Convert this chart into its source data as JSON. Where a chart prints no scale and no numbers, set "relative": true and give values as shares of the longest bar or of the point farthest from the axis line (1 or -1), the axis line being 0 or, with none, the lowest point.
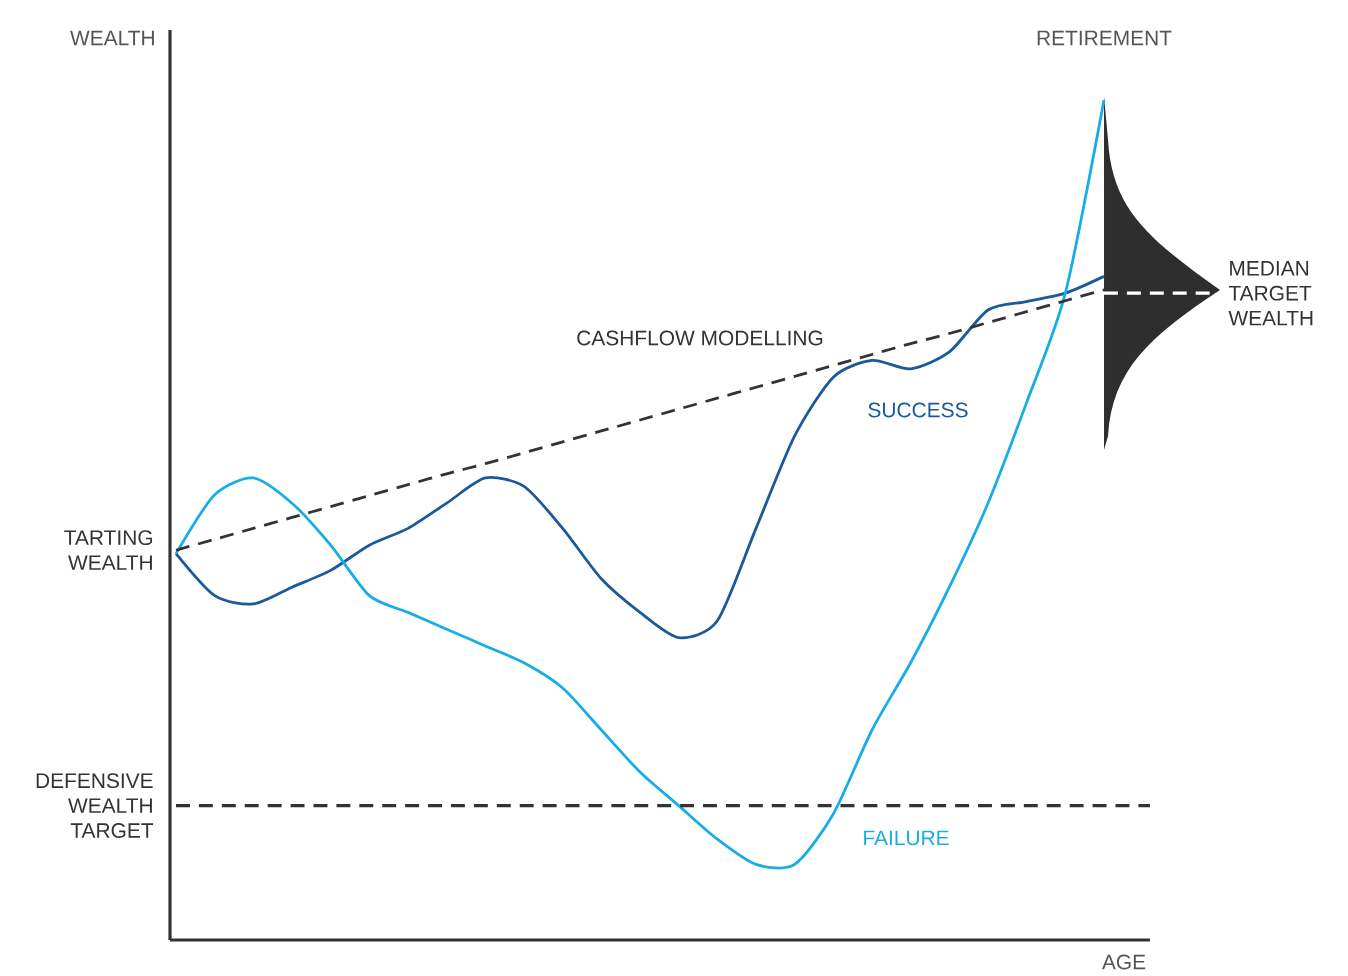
{
  "chart_data": {
    "type": "line",
    "relative": true,
    "xlabel": "AGE",
    "ylabel": "WEALTH",
    "legend": false,
    "marker": "none",
    "categories": [
      null,
      null,
      null,
      null,
      null,
      null,
      null,
      null,
      null,
      null,
      null,
      null,
      null,
      null,
      null,
      null,
      null,
      null,
      null,
      null,
      null,
      null,
      null,
      null,
      null
    ],
    "series": [
      {
        "name": "SUCCESS",
        "color": "#1a5a9a",
        "line_style": "solid",
        "values": [
          0.46,
          0.41,
          0.4,
          0.42,
          0.44,
          0.47,
          0.49,
          0.52,
          0.55,
          0.54,
          0.49,
          0.43,
          0.39,
          0.36,
          0.38,
          0.49,
          0.6,
          0.67,
          0.69,
          0.68,
          0.7,
          0.75,
          0.76,
          0.77,
          0.79
        ]
      },
      {
        "name": "FAILURE",
        "color": "#18ade6",
        "line_style": "solid",
        "values": [
          0.46,
          0.53,
          0.55,
          0.52,
          0.47,
          0.41,
          0.39,
          0.37,
          0.35,
          0.33,
          0.3,
          0.25,
          0.2,
          0.16,
          0.12,
          0.09,
          0.09,
          0.15,
          0.25,
          0.33,
          0.42,
          0.52,
          0.64,
          0.77,
          1
        ]
      },
      {
        "name": "CASHFLOW MODELLING",
        "color": "#333333",
        "line_style": "dashed",
        "values": [
          0.464,
          0.477,
          0.49,
          0.503,
          0.516,
          0.529,
          0.542,
          0.555,
          0.567,
          0.58,
          0.593,
          0.606,
          0.619,
          0.632,
          0.645,
          0.658,
          0.671,
          0.684,
          0.697,
          0.71,
          0.722,
          0.735,
          0.748,
          0.761,
          0.774
        ]
      }
    ],
    "ref_lines": [
      {
        "axis": "y",
        "value": 0.16,
        "label": "DEFENSIVE WEALTH TARGET",
        "color": "#333333",
        "line_style": "dashed"
      },
      {
        "axis": "y",
        "value": 0.77,
        "label": "MEDIAN TARGET WEALTH",
        "color": "#ffffff",
        "line_style": "dashed"
      }
    ],
    "annotations": [
      "RETIREMENT",
      "TARTING WEALTH"
    ]
  }
}
